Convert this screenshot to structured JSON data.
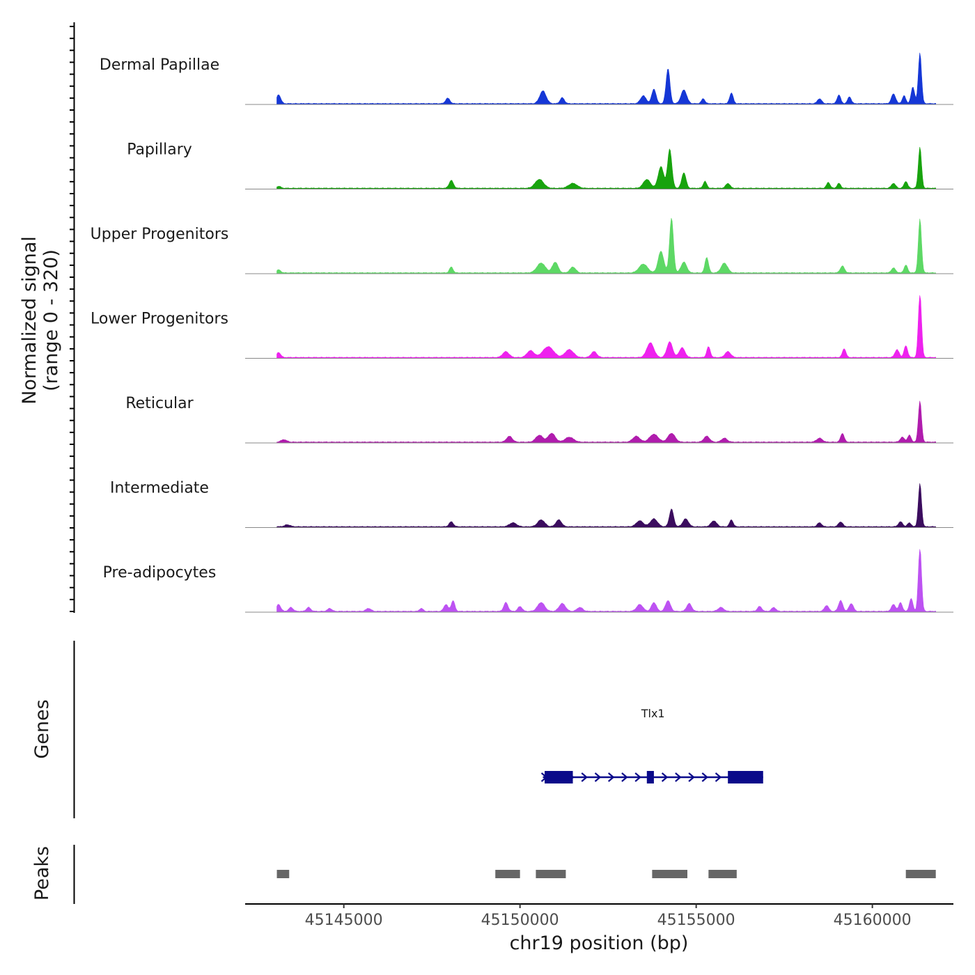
{
  "chart_data": {
    "type": "area",
    "title": "",
    "chromosome": "chr19",
    "xlabel": "chr19 position (bp)",
    "ylabel_line1": "Normalized signal",
    "ylabel_line2": "(range 0 - 320)",
    "y_range": [
      0,
      320
    ],
    "xlim": [
      45142200,
      45162300
    ],
    "x_ticks": [
      45145000,
      45150000,
      45155000,
      45160000
    ],
    "x_tick_labels": [
      "45145000",
      "45150000",
      "45155000",
      "45160000"
    ],
    "signal_start": 45143100,
    "signal_end": 45161800,
    "baseline_color": "#888888",
    "baseline_level": 2,
    "tracks": [
      {
        "name": "Dermal Papillae",
        "color": "#1537d6",
        "peaks": [
          [
            45143150,
            45,
            60
          ],
          [
            45147950,
            28,
            60
          ],
          [
            45150650,
            65,
            90
          ],
          [
            45151200,
            30,
            60
          ],
          [
            45153500,
            40,
            80
          ],
          [
            45153800,
            75,
            60
          ],
          [
            45154200,
            180,
            55
          ],
          [
            45154650,
            70,
            80
          ],
          [
            45155200,
            25,
            50
          ],
          [
            45156000,
            55,
            50
          ],
          [
            45158500,
            25,
            60
          ],
          [
            45159050,
            45,
            50
          ],
          [
            45159350,
            35,
            50
          ],
          [
            45160600,
            50,
            60
          ],
          [
            45160900,
            40,
            50
          ],
          [
            45161150,
            85,
            50
          ],
          [
            45161350,
            260,
            45
          ]
        ]
      },
      {
        "name": "Papillary",
        "color": "#18a30e",
        "peaks": [
          [
            45143150,
            10,
            60
          ],
          [
            45148050,
            40,
            60
          ],
          [
            45150550,
            45,
            120
          ],
          [
            45151500,
            25,
            120
          ],
          [
            45153600,
            45,
            100
          ],
          [
            45154000,
            110,
            80
          ],
          [
            45154250,
            200,
            60
          ],
          [
            45154650,
            80,
            60
          ],
          [
            45155250,
            35,
            50
          ],
          [
            45155900,
            25,
            60
          ],
          [
            45158750,
            30,
            50
          ],
          [
            45159050,
            25,
            50
          ],
          [
            45160600,
            25,
            60
          ],
          [
            45160950,
            35,
            50
          ],
          [
            45161350,
            210,
            45
          ]
        ]
      },
      {
        "name": "Upper Progenitors",
        "color": "#5dd865",
        "peaks": [
          [
            45143150,
            15,
            60
          ],
          [
            45148050,
            30,
            50
          ],
          [
            45150600,
            50,
            120
          ],
          [
            45151000,
            55,
            80
          ],
          [
            45151500,
            30,
            80
          ],
          [
            45153500,
            45,
            120
          ],
          [
            45154000,
            110,
            80
          ],
          [
            45154300,
            280,
            55
          ],
          [
            45154650,
            55,
            80
          ],
          [
            45155300,
            80,
            50
          ],
          [
            45155800,
            50,
            90
          ],
          [
            45159150,
            35,
            60
          ],
          [
            45160600,
            25,
            60
          ],
          [
            45160950,
            40,
            50
          ],
          [
            45161350,
            275,
            45
          ]
        ]
      },
      {
        "name": "Lower Progenitors",
        "color": "#ee22ee",
        "peaks": [
          [
            45143150,
            25,
            60
          ],
          [
            45149600,
            30,
            90
          ],
          [
            45150300,
            35,
            100
          ],
          [
            45150800,
            55,
            150
          ],
          [
            45151400,
            40,
            120
          ],
          [
            45152100,
            30,
            80
          ],
          [
            45153700,
            75,
            100
          ],
          [
            45154250,
            80,
            80
          ],
          [
            45154600,
            50,
            80
          ],
          [
            45155350,
            55,
            50
          ],
          [
            45155900,
            30,
            80
          ],
          [
            45159200,
            45,
            50
          ],
          [
            45160700,
            40,
            60
          ],
          [
            45160950,
            60,
            50
          ],
          [
            45161350,
            330,
            45
          ]
        ]
      },
      {
        "name": "Reticular",
        "color": "#b01cad",
        "peaks": [
          [
            45143300,
            12,
            80
          ],
          [
            45149700,
            30,
            80
          ],
          [
            45150550,
            35,
            100
          ],
          [
            45150900,
            45,
            100
          ],
          [
            45151400,
            25,
            120
          ],
          [
            45153300,
            30,
            100
          ],
          [
            45153800,
            40,
            120
          ],
          [
            45154300,
            45,
            100
          ],
          [
            45155300,
            30,
            80
          ],
          [
            45155800,
            20,
            80
          ],
          [
            45158500,
            20,
            80
          ],
          [
            45159150,
            45,
            50
          ],
          [
            45160850,
            25,
            60
          ],
          [
            45161050,
            35,
            50
          ],
          [
            45161350,
            210,
            45
          ]
        ]
      },
      {
        "name": "Intermediate",
        "color": "#3b0c5e",
        "peaks": [
          [
            45143400,
            10,
            80
          ],
          [
            45148050,
            25,
            60
          ],
          [
            45149800,
            20,
            100
          ],
          [
            45150600,
            35,
            100
          ],
          [
            45151100,
            35,
            80
          ],
          [
            45153400,
            30,
            100
          ],
          [
            45153800,
            40,
            100
          ],
          [
            45154300,
            90,
            60
          ],
          [
            45154700,
            40,
            80
          ],
          [
            45155500,
            30,
            80
          ],
          [
            45156000,
            35,
            50
          ],
          [
            45158500,
            20,
            60
          ],
          [
            45159100,
            25,
            60
          ],
          [
            45160800,
            25,
            60
          ],
          [
            45161050,
            20,
            50
          ],
          [
            45161350,
            220,
            45
          ]
        ]
      },
      {
        "name": "Pre-adipocytes",
        "color": "#bd52f2",
        "peaks": [
          [
            45143150,
            35,
            60
          ],
          [
            45143500,
            20,
            60
          ],
          [
            45144000,
            20,
            60
          ],
          [
            45144600,
            15,
            60
          ],
          [
            45145700,
            15,
            70
          ],
          [
            45147200,
            15,
            50
          ],
          [
            45147900,
            35,
            60
          ],
          [
            45148100,
            55,
            50
          ],
          [
            45149600,
            45,
            60
          ],
          [
            45150000,
            25,
            60
          ],
          [
            45150600,
            45,
            100
          ],
          [
            45151200,
            40,
            90
          ],
          [
            45151700,
            20,
            80
          ],
          [
            45153400,
            35,
            90
          ],
          [
            45153800,
            45,
            70
          ],
          [
            45154200,
            55,
            70
          ],
          [
            45154800,
            40,
            70
          ],
          [
            45155700,
            20,
            80
          ],
          [
            45156800,
            25,
            60
          ],
          [
            45157200,
            20,
            60
          ],
          [
            45158700,
            30,
            60
          ],
          [
            45159100,
            55,
            60
          ],
          [
            45159400,
            40,
            60
          ],
          [
            45160600,
            35,
            60
          ],
          [
            45160800,
            45,
            50
          ],
          [
            45161100,
            65,
            50
          ],
          [
            45161350,
            330,
            45
          ]
        ]
      }
    ],
    "genes_track_label": "Genes",
    "genes": [
      {
        "name": "Tlx1",
        "strand": "+",
        "start": 45150650,
        "end": 45156900,
        "exons": [
          [
            45150700,
            45151500
          ],
          [
            45153600,
            45153800
          ],
          [
            45155900,
            45156900
          ]
        ],
        "color": "#0a0a8a"
      }
    ],
    "peaks_track_label": "Peaks",
    "peak_regions": [
      [
        45143100,
        45143450
      ],
      [
        45149300,
        45150000
      ],
      [
        45150450,
        45151300
      ],
      [
        45153750,
        45154750
      ],
      [
        45155350,
        45156150
      ],
      [
        45160950,
        45161800
      ]
    ],
    "peak_color": "#666666"
  }
}
